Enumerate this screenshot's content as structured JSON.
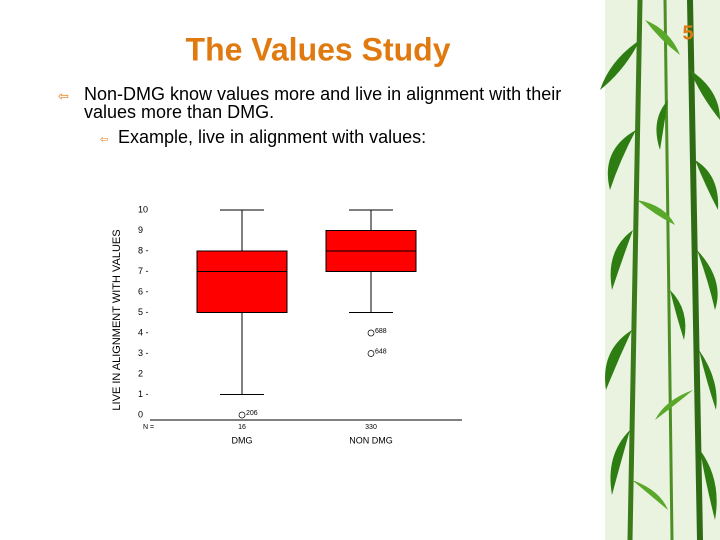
{
  "slide": {
    "title": "The Values Study",
    "page_number": "5",
    "bullet": "Non-DMG know values more and live in alignment with their values more than DMG.",
    "sub_bullet": "Example, live in alignment with values:"
  },
  "chart_data": {
    "type": "box",
    "y_label": "LIVE IN ALIGNMENT WITH VALUES",
    "categories": [
      "DMG",
      "NON DMG"
    ],
    "n_label": "N =",
    "n_values": [
      16,
      330
    ],
    "boxes": [
      {
        "whisker_low": 1,
        "q1": 5,
        "median": 7,
        "q3": 8,
        "whisker_high": 10,
        "outliers": [
          {
            "value": 0,
            "case": "206"
          }
        ]
      },
      {
        "whisker_low": 5,
        "q1": 7,
        "median": 8,
        "q3": 9,
        "whisker_high": 10,
        "outliers": [
          {
            "value": 4,
            "case": "688"
          },
          {
            "value": 3,
            "case": "648"
          }
        ]
      }
    ],
    "color": "#ff0000",
    "ylim": [
      0,
      10
    ],
    "yticks": [
      0,
      {
        "value": 1,
        "label": "1 -"
      },
      2,
      {
        "value": 3,
        "label": "3 -"
      },
      {
        "value": 4,
        "label": "4 -"
      },
      {
        "value": 5,
        "label": "5 -"
      },
      {
        "value": 6,
        "label": "6 -"
      },
      {
        "value": 7,
        "label": "7 -"
      },
      {
        "value": 8,
        "label": "8 -"
      },
      9,
      10
    ]
  }
}
